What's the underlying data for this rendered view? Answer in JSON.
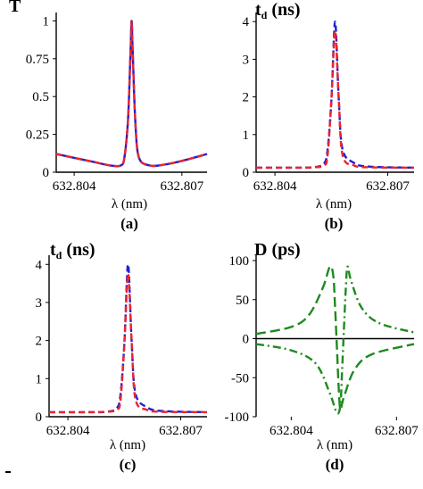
{
  "chart_data": [
    {
      "id": "a",
      "type": "line",
      "title": "T",
      "title_sub": "",
      "title_tail": "",
      "xlabel": "λ (nm)",
      "panel_label": "(a)",
      "xlim": [
        632.8035,
        632.8077
      ],
      "ylim": [
        0,
        1.02
      ],
      "x_ticks": [
        "632.804",
        "632.807"
      ],
      "y_ticks": [
        "0",
        "0.25",
        "0.5",
        "0.75",
        "1"
      ],
      "series": [
        {
          "color": "#1f1fd6",
          "style": "solid",
          "x": [
            632.8035,
            632.8045,
            632.805,
            632.8053,
            632.8054,
            632.8055,
            632.80557,
            632.8056,
            632.80563,
            632.8057,
            632.8058,
            632.8061,
            632.8065,
            632.807,
            632.8077
          ],
          "values": [
            0.12,
            0.07,
            0.045,
            0.045,
            0.1,
            0.35,
            0.8,
            1.0,
            0.8,
            0.35,
            0.1,
            0.045,
            0.05,
            0.075,
            0.12
          ]
        },
        {
          "color": "#e8262d",
          "style": "dashed",
          "x": [
            632.8035,
            632.8045,
            632.805,
            632.8053,
            632.8054,
            632.8055,
            632.80557,
            632.8056,
            632.80563,
            632.8057,
            632.8058,
            632.8061,
            632.8065,
            632.807,
            632.8077
          ],
          "values": [
            0.12,
            0.07,
            0.045,
            0.045,
            0.1,
            0.35,
            0.8,
            1.0,
            0.8,
            0.35,
            0.1,
            0.045,
            0.05,
            0.075,
            0.12
          ]
        }
      ]
    },
    {
      "id": "b",
      "type": "line",
      "title": "t",
      "title_sub": "d",
      "title_tail": " (ns)",
      "xlabel": "λ (nm)",
      "panel_label": "(b)",
      "xlim": [
        632.8035,
        632.8077
      ],
      "ylim": [
        0,
        4.1
      ],
      "x_ticks": [
        "632.804",
        "632.807"
      ],
      "y_ticks": [
        "0",
        "1",
        "2",
        "3",
        "4"
      ],
      "series": [
        {
          "color": "#1f1fd6",
          "style": "dashed",
          "x": [
            632.8035,
            632.8045,
            632.805,
            632.8053,
            632.8054,
            632.8055,
            632.80557,
            632.8056,
            632.80563,
            632.8057,
            632.8058,
            632.8061,
            632.8065,
            632.8077
          ],
          "values": [
            0.12,
            0.12,
            0.13,
            0.22,
            0.6,
            1.9,
            3.6,
            4.0,
            3.6,
            1.9,
            0.6,
            0.25,
            0.15,
            0.12
          ]
        },
        {
          "color": "#e8262d",
          "style": "dashed",
          "x": [
            632.8035,
            632.8045,
            632.805,
            632.8053,
            632.8054,
            632.8055,
            632.80557,
            632.8056,
            632.80563,
            632.8057,
            632.8058,
            632.8061,
            632.8065,
            632.8077
          ],
          "values": [
            0.12,
            0.12,
            0.13,
            0.18,
            0.45,
            1.9,
            3.4,
            3.75,
            3.4,
            1.9,
            0.45,
            0.18,
            0.13,
            0.12
          ]
        }
      ]
    },
    {
      "id": "c",
      "type": "line",
      "title": "t",
      "title_sub": "d",
      "title_tail": " (ns)",
      "xlabel": "λ (nm)",
      "panel_label": "(c)",
      "xlim": [
        632.8035,
        632.8077
      ],
      "ylim": [
        0,
        4.1
      ],
      "x_ticks": [
        "632.804",
        "632.807"
      ],
      "y_ticks": [
        "0",
        "1",
        "2",
        "3",
        "4"
      ],
      "series": [
        {
          "color": "#1f1fd6",
          "style": "dashed",
          "x": [
            632.8035,
            632.8045,
            632.805,
            632.8053,
            632.8054,
            632.8055,
            632.80557,
            632.8056,
            632.80563,
            632.8057,
            632.8058,
            632.8061,
            632.8065,
            632.8077
          ],
          "values": [
            0.12,
            0.12,
            0.13,
            0.22,
            0.6,
            1.9,
            3.6,
            4.0,
            3.6,
            1.9,
            0.6,
            0.25,
            0.15,
            0.12
          ]
        },
        {
          "color": "#e8262d",
          "style": "dashed",
          "x": [
            632.8035,
            632.8045,
            632.805,
            632.8053,
            632.8054,
            632.8055,
            632.80557,
            632.8056,
            632.80563,
            632.8057,
            632.8058,
            632.8061,
            632.8065,
            632.8077
          ],
          "values": [
            0.12,
            0.12,
            0.13,
            0.18,
            0.45,
            1.9,
            3.4,
            3.75,
            3.4,
            1.9,
            0.45,
            0.18,
            0.13,
            0.12
          ]
        }
      ]
    },
    {
      "id": "d",
      "type": "line",
      "title": "D (ps)",
      "title_sub": "",
      "title_tail": "",
      "xlabel": "λ (nm)",
      "panel_label": "(d)",
      "xlim": [
        632.803,
        632.8075
      ],
      "ylim": [
        -100,
        100
      ],
      "x_ticks": [
        "632.804",
        "632.807"
      ],
      "y_ticks": [
        "-100",
        "-50",
        "0",
        "50",
        "100"
      ],
      "series": [
        {
          "color": "#1e8a1e",
          "style": "dashdot",
          "x": [
            632.803,
            632.804,
            632.8047,
            632.8051,
            632.8053,
            632.8054,
            632.80545,
            632.8055,
            632.80555,
            632.8056,
            632.8057,
            632.806,
            632.8065,
            632.8075
          ],
          "values": [
            -7,
            -15,
            -32,
            -70,
            -95,
            -85,
            -40,
            10,
            60,
            92,
            75,
            40,
            20,
            8
          ]
        },
        {
          "color": "#1e8a1e",
          "style": "dashdash",
          "x": [
            632.803,
            632.804,
            632.8045,
            632.8049,
            632.8051,
            632.8052,
            632.80525,
            632.8053,
            632.80535,
            632.8054,
            632.8055,
            632.8058,
            632.8063,
            632.8075
          ],
          "values": [
            6,
            15,
            30,
            65,
            92,
            80,
            40,
            -10,
            -60,
            -90,
            -75,
            -40,
            -20,
            -7
          ]
        }
      ]
    }
  ]
}
